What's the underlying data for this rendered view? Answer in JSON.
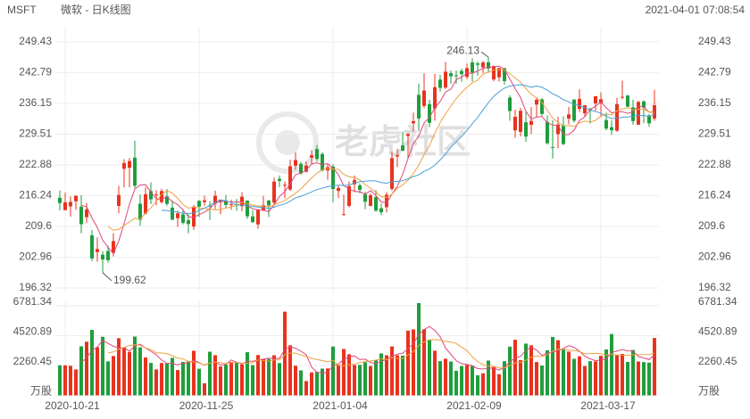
{
  "chart_data": {
    "type": "candlestick",
    "symbol": "MSFT",
    "title": "微软 - 日K线图",
    "timestamp": "2021-04-01 07:08:54",
    "watermark": "老虎社区",
    "high_label": "246.13",
    "low_label": "199.62",
    "categories": [
      null,
      "2020-10-21",
      null,
      null,
      null,
      null,
      null,
      null,
      null,
      null,
      null,
      null,
      null,
      null,
      null,
      null,
      null,
      null,
      null,
      null,
      null,
      null,
      null,
      null,
      null,
      null,
      "2020-11-25",
      null,
      null,
      null,
      null,
      null,
      null,
      null,
      null,
      null,
      null,
      null,
      null,
      null,
      null,
      null,
      null,
      null,
      null,
      null,
      null,
      null,
      null,
      null,
      null,
      "2021-01-04",
      null,
      null,
      null,
      null,
      null,
      null,
      null,
      null,
      null,
      null,
      null,
      null,
      null,
      null,
      null,
      null,
      null,
      null,
      null,
      null,
      null,
      null,
      null,
      null,
      "2021-02-09",
      null,
      null,
      null,
      null,
      null,
      null,
      null,
      null,
      null,
      null,
      null,
      null,
      null,
      null,
      null,
      null,
      null,
      null,
      null,
      null,
      null,
      null,
      null,
      null,
      "2021-03-17",
      null,
      null,
      null,
      null,
      null,
      null,
      null,
      null,
      null,
      null
    ],
    "open": [
      215.8,
      213.12,
      213.93,
      215.03,
      213.85,
      211.59,
      207.67,
      204.07,
      203.5,
      204.29,
      203.89,
      214.02,
      222.04,
      222.26,
      224.45,
      214.5,
      212.39,
      217.21,
      216.36,
      214.87,
      216.1,
      213.65,
      211.38,
      212.2,
      210.95,
      209.59,
      215.11,
      214.85,
      214.1,
      214.51,
      214.88,
      215.08,
      214.22,
      214.37,
      213.97,
      215.16,
      211.77,
      210.05,
      213.1,
      215.17,
      214.75,
      219.87,
      218.59,
      217.55,
      222.69,
      223.11,
      221.42,
      224.45,
      226.31,
      225.23,
      221.7,
      222.53,
      217.26,
      212.17,
      214.04,
      218.68,
      218.47,
      216.5,
      214.02,
      215.91,
      213.52,
      213.75,
      217.7,
      224.7,
      227.08,
      229.12,
      231.86,
      238.0,
      235.61,
      235.99,
      235.06,
      241.3,
      239.57,
      242.66,
      242.23,
      243.15,
      241.87,
      245.0,
      244.78,
      243.93,
      245.03,
      241.32,
      241.8,
      243.75,
      237.42,
      230.33,
      230.01,
      232.08,
      231.53,
      235.9,
      237.01,
      232.16,
      226.74,
      229.52,
      231.37,
      232.88,
      237.0,
      234.96,
      234.01,
      234.96,
      236.15,
      236.15,
      232.56,
      231.02,
      230.27,
      237.49,
      237.85,
      235.3,
      231.55,
      236.59,
      233.53,
      232.91
    ],
    "high": [
      217.37,
      216.92,
      216.06,
      216.28,
      216.34,
      214.67,
      208.84,
      207.24,
      204.29,
      205.43,
      208.12,
      218.32,
      224.12,
      224.36,
      228.12,
      216.5,
      218.04,
      219.11,
      217.42,
      217.74,
      217.68,
      215.17,
      212.99,
      213.29,
      212.29,
      214.25,
      215.29,
      216.27,
      215.06,
      217.32,
      215.47,
      216.38,
      215.38,
      215.54,
      216.95,
      215.23,
      213.08,
      213.32,
      216.21,
      215.38,
      220.11,
      220.62,
      219.3,
      224.0,
      225.63,
      223.56,
      223.61,
      226.03,
      227.18,
      225.63,
      223.0,
      223.0,
      218.52,
      216.49,
      219.34,
      220.58,
      218.91,
      217.1,
      216.76,
      217.46,
      214.51,
      216.98,
      225.79,
      226.3,
      230.07,
      229.78,
      234.18,
      240.44,
      242.64,
      236.94,
      242.5,
      242.31,
      245.09,
      243.24,
      243.28,
      243.68,
      244.76,
      245.92,
      245.15,
      245.3,
      246.13,
      244.31,
      243.93,
      243.86,
      237.93,
      234.83,
      235.2,
      234.59,
      235.37,
      237.47,
      237.3,
      233.58,
      232.49,
      233.27,
      233.37,
      235.38,
      237.0,
      239.17,
      235.82,
      235.19,
      237.69,
      238.55,
      234.18,
      232.47,
      237.37,
      241.05,
      238.0,
      236.94,
      236.71,
      236.8,
      233.85,
      239.1
    ],
    "low": [
      213.09,
      213.12,
      211.7,
      213.16,
      208.1,
      210.33,
      202.1,
      202.0,
      199.62,
      201.77,
      203.12,
      212.42,
      218.03,
      218.03,
      217.88,
      209.72,
      212.2,
      214.4,
      214.16,
      214.52,
      214.08,
      210.93,
      209.51,
      210.0,
      208.16,
      208.86,
      211.63,
      214.04,
      210.95,
      213.35,
      212.24,
      213.65,
      213.18,
      212.99,
      212.89,
      211.21,
      210.36,
      209.11,
      212.88,
      211.63,
      214.04,
      218.09,
      215.66,
      217.28,
      221.85,
      220.8,
      221.2,
      223.02,
      223.58,
      221.47,
      219.68,
      214.81,
      215.7,
      211.94,
      213.71,
      217.03,
      216.73,
      213.32,
      213.93,
      212.74,
      212.03,
      212.63,
      217.29,
      222.42,
      225.8,
      224.22,
      230.08,
      230.14,
      235.09,
      231.04,
      232.43,
      238.69,
      239.26,
      240.37,
      240.42,
      240.81,
      241.38,
      240.89,
      242.15,
      242.73,
      242.92,
      240.94,
      240.86,
      240.18,
      232.4,
      228.73,
      229.0,
      227.88,
      229.54,
      233.15,
      233.45,
      227.26,
      224.26,
      226.46,
      227.13,
      231.67,
      232.04,
      234.31,
      233.23,
      231.81,
      234.61,
      233.23,
      230.33,
      229.35,
      230.01,
      237.07,
      235.32,
      231.57,
      231.55,
      231.88,
      231.1,
      232.39
    ],
    "close": [
      214.65,
      214.8,
      214.89,
      216.23,
      210.08,
      213.25,
      202.68,
      204.72,
      202.47,
      202.33,
      206.43,
      216.39,
      223.29,
      223.72,
      218.39,
      211.01,
      216.55,
      215.44,
      216.51,
      217.23,
      214.46,
      211.08,
      212.42,
      210.39,
      210.11,
      213.86,
      213.87,
      215.23,
      214.07,
      216.21,
      215.37,
      214.24,
      214.36,
      214.29,
      216.01,
      211.8,
      210.52,
      213.26,
      214.2,
      214.13,
      219.28,
      219.42,
      218.59,
      222.59,
      223.94,
      221.02,
      222.75,
      224.96,
      224.15,
      221.68,
      222.42,
      217.69,
      217.9,
      212.25,
      218.29,
      219.62,
      217.49,
      214.93,
      216.34,
      213.02,
      212.65,
      216.44,
      224.34,
      224.97,
      225.95,
      229.53,
      232.33,
      232.9,
      238.93,
      231.96,
      239.65,
      239.51,
      243.0,
      242.01,
      242.2,
      242.47,
      243.77,
      242.82,
      244.49,
      244.99,
      243.7,
      244.2,
      243.79,
      240.97,
      234.51,
      233.27,
      234.55,
      228.99,
      232.38,
      236.94,
      233.87,
      227.56,
      226.73,
      231.6,
      227.39,
      233.78,
      232.42,
      237.13,
      235.75,
      234.81,
      237.71,
      237.04,
      230.72,
      230.35,
      235.99,
      237.58,
      235.46,
      232.34,
      236.48,
      235.24,
      231.85,
      235.77
    ],
    "volume": [
      2275,
      2272,
      2235,
      1963,
      3712,
      4062,
      4961,
      3644,
      4434,
      2575,
      2979,
      4330,
      3635,
      3291,
      4453,
      3631,
      2870,
      2456,
      1962,
      2448,
      2416,
      2843,
      1917,
      2533,
      2580,
      3377,
      2016,
      919,
      3306,
      3045,
      2184,
      2327,
      2528,
      2463,
      2333,
      3266,
      2294,
      3054,
      2739,
      2748,
      3036,
      2446,
      6335,
      3790,
      2241,
      1890,
      1084,
      1740,
      1773,
      2025,
      2038,
      3700,
      2310,
      3509,
      3113,
      2296,
      2307,
      2505,
      2219,
      2670,
      3173,
      3036,
      3703,
      3034,
      3007,
      4900,
      4998,
      6987,
      5003,
      4208,
      3383,
      2587,
      2776,
      2562,
      1860,
      2216,
      2301,
      2240,
      1518,
      1671,
      2636,
      2145,
      1602,
      2584,
      3685,
      4209,
      2664,
      3917,
      3785,
      2527,
      2255,
      3409,
      4421,
      4178,
      3521,
      3308,
      2769,
      2957,
      2220,
      2590,
      2574,
      2993,
      3477,
      4645,
      3045,
      3135,
      2535,
      3436,
      2563,
      2517,
      2482,
      4342
    ],
    "up_color": "#e8331e",
    "down_color": "#1f9e3c",
    "ylim": [
      196.32,
      249.43
    ],
    "yticks": [
      196.32,
      202.96,
      209.6,
      216.24,
      222.88,
      229.51,
      236.15,
      242.79,
      249.43
    ],
    "volume_ylim": [
      0,
      6781.34
    ],
    "volume_yticks": [
      {
        "value": 0,
        "label": "万股"
      },
      2260.45,
      4520.89,
      6781.34
    ],
    "ma_periods": [
      5,
      10,
      20
    ],
    "ma_colors": [
      "#e0457b",
      "#f0a040",
      "#4a9fd6"
    ],
    "volume_ma_periods": [
      5,
      10
    ],
    "volume_ma_colors": [
      "#e0457b",
      "#f0a040"
    ],
    "grid": true
  }
}
